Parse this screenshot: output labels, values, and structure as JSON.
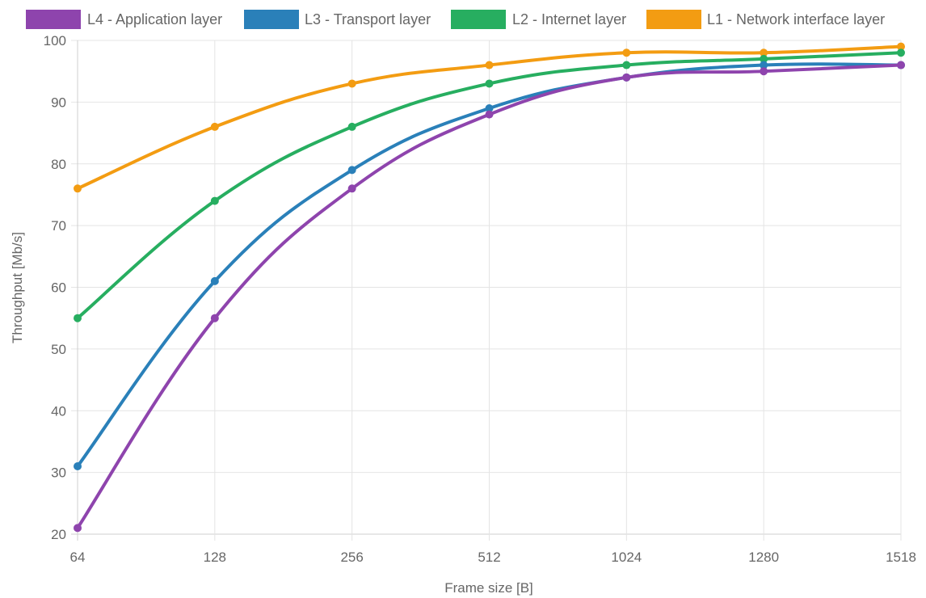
{
  "chart_data": {
    "type": "line",
    "title": "",
    "xlabel": "Frame size [B]",
    "ylabel": "Throughput [Mb/s]",
    "categories": [
      "64",
      "128",
      "256",
      "512",
      "1024",
      "1280",
      "1518"
    ],
    "ylim": [
      20,
      100
    ],
    "yticks": [
      20,
      30,
      40,
      50,
      60,
      70,
      80,
      90,
      100
    ],
    "grid": true,
    "legend_position": "top",
    "series": [
      {
        "name": "L4 - Application layer",
        "color": "#8e44ad",
        "values": [
          21,
          55,
          76,
          88,
          94,
          95,
          96
        ]
      },
      {
        "name": "L3 - Transport layer",
        "color": "#2a80b9",
        "values": [
          31,
          61,
          79,
          89,
          94,
          96,
          96
        ]
      },
      {
        "name": "L2 - Internet layer",
        "color": "#27ae60",
        "values": [
          55,
          74,
          86,
          93,
          96,
          97,
          98
        ]
      },
      {
        "name": "L1 - Network interface layer",
        "color": "#f39c12",
        "values": [
          76,
          86,
          93,
          96,
          98,
          98,
          99
        ]
      }
    ]
  }
}
